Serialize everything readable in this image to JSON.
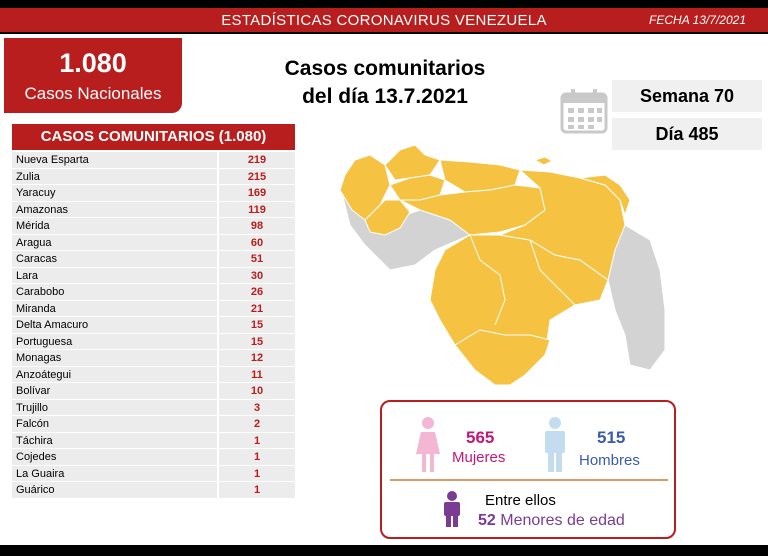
{
  "header": {
    "title": "ESTADÍSTICAS CORONAVIRUS VENEZUELA",
    "date": "FECHA 13/7/2021"
  },
  "national": {
    "number": "1.080",
    "label": "Casos Nacionales"
  },
  "main_title": {
    "line1": "Casos comunitarios",
    "line2": "del día 13.7.2021"
  },
  "stats": {
    "semana": "Semana 70",
    "dia": "Día 485"
  },
  "list": {
    "header": "CASOS COMUNITARIOS (1.080)",
    "rows": [
      {
        "name": "Nueva Esparta",
        "value": "219"
      },
      {
        "name": "Zulia",
        "value": "215"
      },
      {
        "name": "Yaracuy",
        "value": "169"
      },
      {
        "name": "Amazonas",
        "value": "119"
      },
      {
        "name": "Mérida",
        "value": "98"
      },
      {
        "name": "Aragua",
        "value": "60"
      },
      {
        "name": "Caracas",
        "value": "51"
      },
      {
        "name": "Lara",
        "value": "30"
      },
      {
        "name": "Carabobo",
        "value": "26"
      },
      {
        "name": "Miranda",
        "value": "21"
      },
      {
        "name": "Delta Amacuro",
        "value": "15"
      },
      {
        "name": "Portuguesa",
        "value": "15"
      },
      {
        "name": "Monagas",
        "value": "12"
      },
      {
        "name": "Anzoátegui",
        "value": "11"
      },
      {
        "name": "Bolívar",
        "value": "10"
      },
      {
        "name": "Trujillo",
        "value": "3"
      },
      {
        "name": "Falcón",
        "value": "2"
      },
      {
        "name": "Táchira",
        "value": "1"
      },
      {
        "name": "Cojedes",
        "value": "1"
      },
      {
        "name": "La Guaira",
        "value": "1"
      },
      {
        "name": "Guárico",
        "value": "1"
      }
    ]
  },
  "gender": {
    "women_count": "565",
    "women_label": "Mujeres",
    "men_count": "515",
    "men_label": "Hombres",
    "entre": "Entre ellos",
    "minors_count": "52",
    "minors_label": "Menores de edad"
  },
  "colors": {
    "brand_red": "#b81e1e",
    "map_affected": "#f5c242",
    "map_other": "#d3d3d3",
    "women": "#c2187a",
    "men": "#3b5ba9",
    "minors": "#7b3b93"
  }
}
